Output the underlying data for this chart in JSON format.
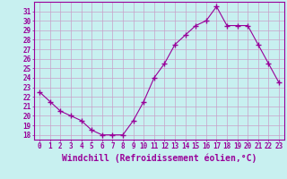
{
  "xlabel": "Windchill (Refroidissement éolien,°C)",
  "x": [
    0,
    1,
    2,
    3,
    4,
    5,
    6,
    7,
    8,
    9,
    10,
    11,
    12,
    13,
    14,
    15,
    16,
    17,
    18,
    19,
    20,
    21,
    22,
    23
  ],
  "y": [
    22.5,
    21.5,
    20.5,
    20.0,
    19.5,
    18.5,
    18.0,
    18.0,
    18.0,
    19.5,
    21.5,
    24.0,
    25.5,
    27.5,
    28.5,
    29.5,
    30.0,
    31.5,
    29.5,
    29.5,
    29.5,
    27.5,
    25.5,
    23.5
  ],
  "line_color": "#990099",
  "marker": "+",
  "marker_size": 4,
  "bg_color": "#c8f0f0",
  "grid_color": "#c8a0c8",
  "ylim": [
    17.5,
    32.0
  ],
  "yticks": [
    18,
    19,
    20,
    21,
    22,
    23,
    24,
    25,
    26,
    27,
    28,
    29,
    30,
    31
  ],
  "xticks": [
    0,
    1,
    2,
    3,
    4,
    5,
    6,
    7,
    8,
    9,
    10,
    11,
    12,
    13,
    14,
    15,
    16,
    17,
    18,
    19,
    20,
    21,
    22,
    23
  ],
  "tick_label_size": 5.5,
  "xlabel_size": 7,
  "spine_color": "#990099"
}
